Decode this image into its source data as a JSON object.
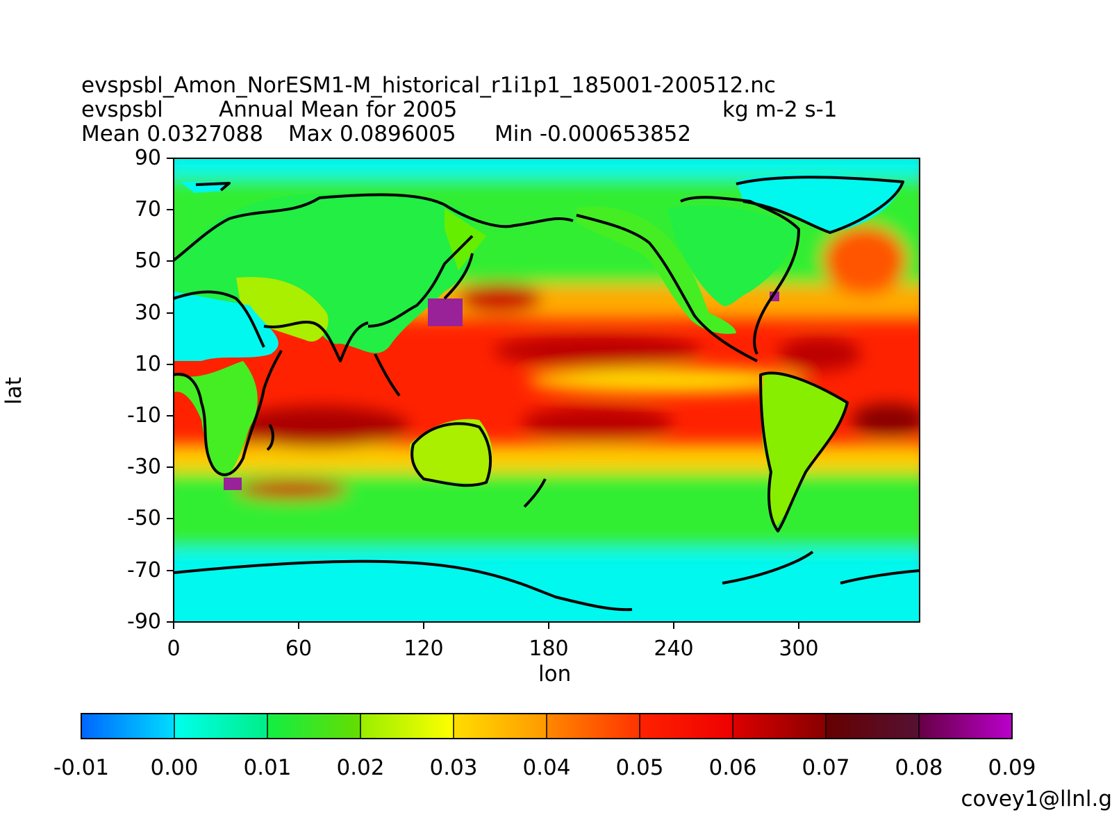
{
  "header": {
    "filename": "evspsbl_Amon_NorESM1-M_historical_r1i1p1_185001-200512.nc",
    "variable": "evspsbl",
    "description": "Annual Mean for 2005",
    "units": "kg m-2 s-1",
    "mean": "Mean 0.0327088",
    "max": "Max 0.0896005",
    "min": "Min -0.000653852"
  },
  "axes": {
    "xlabel": "lon",
    "ylabel": "lat",
    "xticks": [
      "0",
      "60",
      "120",
      "180",
      "240",
      "300"
    ],
    "yticks": [
      "90",
      "70",
      "50",
      "30",
      "10",
      "-10",
      "-30",
      "-50",
      "-70",
      "-90"
    ]
  },
  "colorbar": {
    "labels": [
      "-0.01",
      "0.00",
      "0.01",
      "0.02",
      "0.03",
      "0.04",
      "0.05",
      "0.06",
      "0.07",
      "0.08",
      "0.09"
    ],
    "colors": [
      "#0077ff",
      "#00ffee",
      "#22ee22",
      "#ffff00",
      "#ff7700",
      "#ee0000",
      "#550000",
      "#bb00cc"
    ]
  },
  "footer": "covey1@llnl.g"
}
